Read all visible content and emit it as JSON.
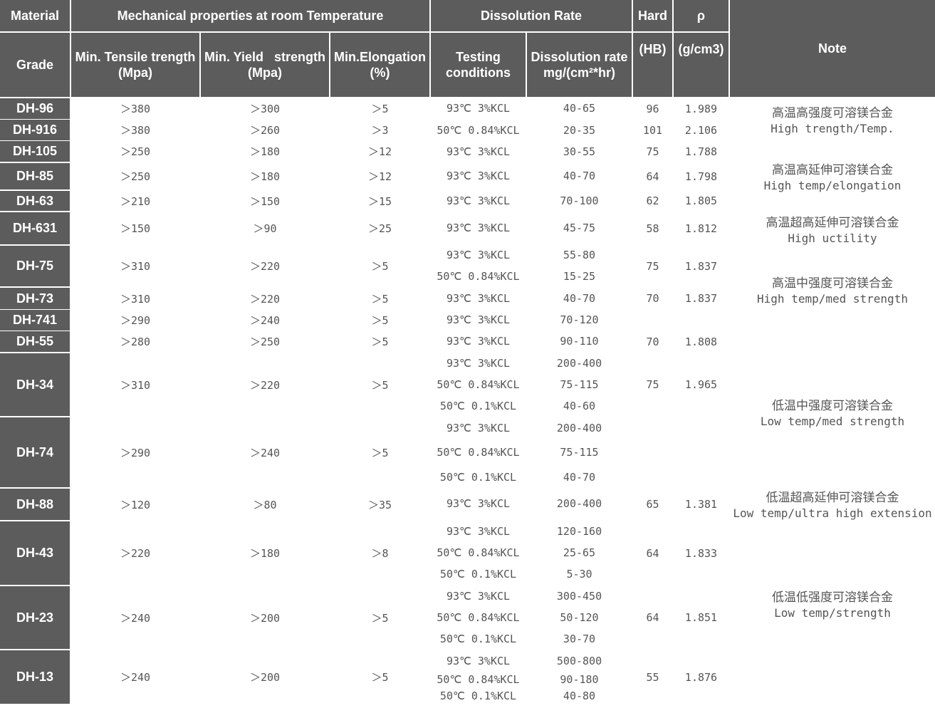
{
  "header": {
    "material": "Material",
    "mech_group": "Mechanical properties at room Temperature",
    "diss_group": "Dissolution Rate",
    "hard": "Hard",
    "rho": "ρ",
    "grade": "Grade",
    "tensile_1": "Min. Tensile trength",
    "tensile_2": "(Mpa)",
    "yield_1": "Min. Yield   strength",
    "yield_2": "(Mpa)",
    "elong_1": "Min.Elongation",
    "elong_2": "(%)",
    "test_1": "Testing",
    "test_2": "conditions",
    "rate_1": "Dissolution rate",
    "rate_2": "mg/(cm²*hr)",
    "hb": "(HB)",
    "gcm3": "(g/cm3)",
    "note": "Note"
  },
  "grades": [
    {
      "grade": "DH-96",
      "tensile": "＞380",
      "yield": "＞300",
      "elongation": "＞5",
      "hardness": "96",
      "density": "1.989",
      "tests": [
        {
          "condition": "93℃ 3%KCL",
          "rate": "40-65"
        }
      ]
    },
    {
      "grade": "DH-916",
      "tensile": "＞380",
      "yield": "＞260",
      "elongation": "＞3",
      "hardness": "101",
      "density": "2.106",
      "tests": [
        {
          "condition": "50℃ 0.84%KCL",
          "rate": "20-35"
        }
      ]
    },
    {
      "grade": "DH-105",
      "tensile": "＞250",
      "yield": "＞180",
      "elongation": "＞12",
      "hardness": "75",
      "density": "1.788",
      "tests": [
        {
          "condition": "93℃ 3%KCL",
          "rate": "30-55"
        }
      ]
    },
    {
      "grade": "DH-85",
      "tensile": "＞250",
      "yield": "＞180",
      "elongation": "＞12",
      "hardness": "64",
      "density": "1.798",
      "tests": [
        {
          "condition": "93℃ 3%KCL",
          "rate": "40-70"
        }
      ]
    },
    {
      "grade": "DH-63",
      "tensile": "＞210",
      "yield": "＞150",
      "elongation": "＞15",
      "hardness": "62",
      "density": "1.805",
      "tests": [
        {
          "condition": "93℃ 3%KCL",
          "rate": "70-100"
        }
      ]
    },
    {
      "grade": "DH-631",
      "tensile": "＞150",
      "yield": "＞90",
      "elongation": "＞25",
      "hardness": "58",
      "density": "1.812",
      "tests": [
        {
          "condition": "93℃ 3%KCL",
          "rate": "45-75"
        }
      ]
    },
    {
      "grade": "DH-75",
      "tensile": "＞310",
      "yield": "＞220",
      "elongation": "＞5",
      "hardness": "75",
      "density": "1.837",
      "tests": [
        {
          "condition": "93℃ 3%KCL",
          "rate": "55-80"
        },
        {
          "condition": "50℃ 0.84%KCL",
          "rate": "15-25"
        }
      ]
    },
    {
      "grade": "DH-73",
      "tensile": "＞310",
      "yield": "＞220",
      "elongation": "＞5",
      "hardness": "70",
      "density": "1.837",
      "tests": [
        {
          "condition": "93℃ 3%KCL",
          "rate": "40-70"
        }
      ]
    },
    {
      "grade": "DH-741",
      "tensile": "＞290",
      "yield": "＞240",
      "elongation": "＞5",
      "hardness": "",
      "density": "",
      "tests": [
        {
          "condition": "93℃ 3%KCL",
          "rate": "70-120"
        }
      ]
    },
    {
      "grade": "DH-55",
      "tensile": "＞280",
      "yield": "＞250",
      "elongation": "＞5",
      "hardness": "70",
      "density": "1.808",
      "tests": [
        {
          "condition": "93℃ 3%KCL",
          "rate": "90-110"
        }
      ]
    },
    {
      "grade": "DH-34",
      "tensile": "＞310",
      "yield": "＞220",
      "elongation": "＞5",
      "hardness": "75",
      "density": "1.965",
      "tests": [
        {
          "condition": "93℃ 3%KCL",
          "rate": "200-400"
        },
        {
          "condition": "50℃ 0.84%KCL",
          "rate": "75-115"
        },
        {
          "condition": "50℃ 0.1%KCL",
          "rate": "40-60"
        }
      ]
    },
    {
      "grade": "DH-74",
      "tensile": "＞290",
      "yield": "＞240",
      "elongation": "＞5",
      "hardness": "",
      "density": "",
      "tests": [
        {
          "condition": "93℃ 3%KCL",
          "rate": "200-400"
        },
        {
          "condition": "50℃ 0.84%KCL",
          "rate": "75-115"
        },
        {
          "condition": "50℃ 0.1%KCL",
          "rate": "40-70"
        }
      ]
    },
    {
      "grade": "DH-88",
      "tensile": "＞120",
      "yield": "＞80",
      "elongation": "＞35",
      "hardness": "65",
      "density": "1.381",
      "tests": [
        {
          "condition": "93℃ 3%KCL",
          "rate": "200-400"
        }
      ]
    },
    {
      "grade": "DH-43",
      "tensile": "＞220",
      "yield": "＞180",
      "elongation": "＞8",
      "hardness": "64",
      "density": "1.833",
      "tests": [
        {
          "condition": "93℃ 3%KCL",
          "rate": "120-160"
        },
        {
          "condition": "50℃ 0.84%KCL",
          "rate": "25-65"
        },
        {
          "condition": "50℃ 0.1%KCL",
          "rate": "5-30"
        }
      ]
    },
    {
      "grade": "DH-23",
      "tensile": "＞240",
      "yield": "＞200",
      "elongation": "＞5",
      "hardness": "64",
      "density": "1.851",
      "tests": [
        {
          "condition": "93℃ 3%KCL",
          "rate": "300-450"
        },
        {
          "condition": "50℃ 0.84%KCL",
          "rate": "50-120"
        },
        {
          "condition": "50℃ 0.1%KCL",
          "rate": "30-70"
        }
      ]
    },
    {
      "grade": "DH-13",
      "tensile": "＞240",
      "yield": "＞200",
      "elongation": "＞5",
      "hardness": "55",
      "density": "1.876",
      "tests": [
        {
          "condition": "93℃ 3%KCL",
          "rate": "500-800"
        },
        {
          "condition": "50℃ 0.84%KCL",
          "rate": "90-180"
        },
        {
          "condition": "50℃ 0.1%KCL",
          "rate": "40-80"
        }
      ]
    }
  ],
  "notes": [
    {
      "cn": "高温高强度可溶镁合金",
      "en": "High trength/Temp."
    },
    {
      "cn": "高温高延伸可溶镁合金",
      "en": "High temp/elongation"
    },
    {
      "cn": "高温超高延伸可溶镁合金",
      "en": "High uctility"
    },
    {
      "cn": "高温中强度可溶镁合金",
      "en": "High temp/med strength"
    },
    {
      "cn": "低温中强度可溶镁合金",
      "en": "Low temp/med strength"
    },
    {
      "cn": "低温超高延伸可溶镁合金",
      "en": "Low temp/ultra high extension"
    },
    {
      "cn": "低温低强度可溶镁合金",
      "en": "Low temp/strength"
    }
  ]
}
